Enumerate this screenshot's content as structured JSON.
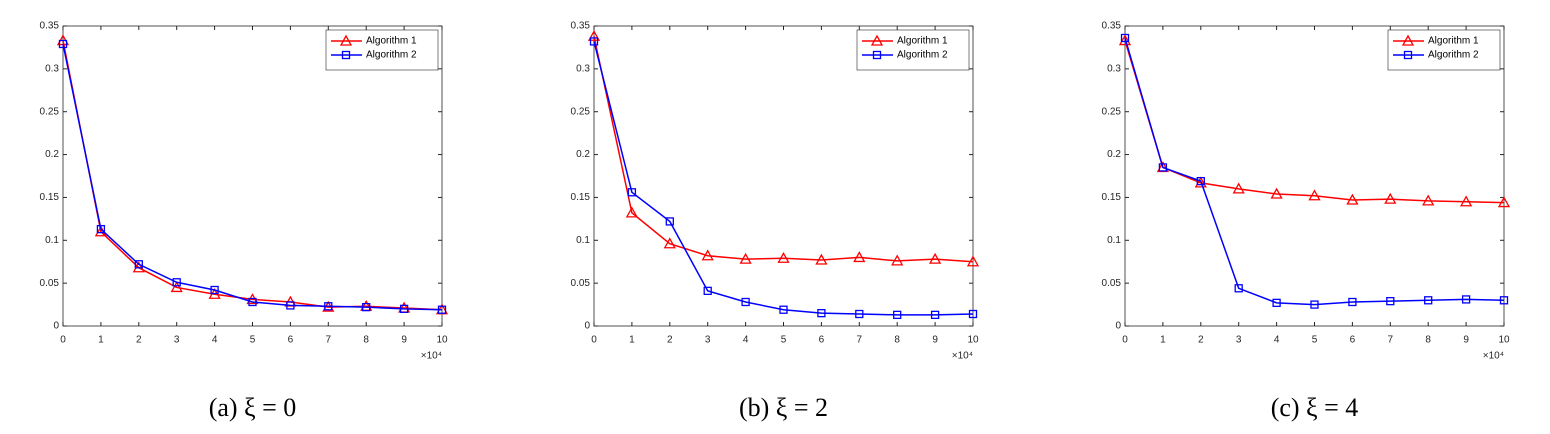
{
  "chart_data": [
    {
      "type": "line",
      "caption": "(a) ξ = 0",
      "x": [
        0,
        1,
        2,
        3,
        4,
        5,
        6,
        7,
        8,
        9,
        10
      ],
      "xlim": [
        0,
        10
      ],
      "xticks": [
        0,
        1,
        2,
        3,
        4,
        5,
        6,
        7,
        8,
        9,
        10
      ],
      "x_multiplier_label": "×10⁴",
      "ylim": [
        0,
        0.35
      ],
      "yticks": [
        0,
        0.05,
        0.1,
        0.15,
        0.2,
        0.25,
        0.3,
        0.35
      ],
      "grid": false,
      "legend": "upper right",
      "series": [
        {
          "name": "Algorithm 1",
          "color": "#ff0000",
          "marker": "triangle",
          "values": [
            0.333,
            0.11,
            0.068,
            0.045,
            0.037,
            0.031,
            0.028,
            0.022,
            0.023,
            0.021,
            0.019
          ]
        },
        {
          "name": "Algorithm 2",
          "color": "#0000ff",
          "marker": "square",
          "values": [
            0.329,
            0.113,
            0.072,
            0.051,
            0.042,
            0.028,
            0.024,
            0.023,
            0.022,
            0.02,
            0.019
          ]
        }
      ]
    },
    {
      "type": "line",
      "caption": "(b) ξ = 2",
      "x": [
        0,
        1,
        2,
        3,
        4,
        5,
        6,
        7,
        8,
        9,
        10
      ],
      "xlim": [
        0,
        10
      ],
      "xticks": [
        0,
        1,
        2,
        3,
        4,
        5,
        6,
        7,
        8,
        9,
        10
      ],
      "x_multiplier_label": "×10⁴",
      "ylim": [
        0,
        0.35
      ],
      "yticks": [
        0,
        0.05,
        0.1,
        0.15,
        0.2,
        0.25,
        0.3,
        0.35
      ],
      "grid": false,
      "legend": "upper right",
      "series": [
        {
          "name": "Algorithm 1",
          "color": "#ff0000",
          "marker": "triangle",
          "values": [
            0.338,
            0.132,
            0.096,
            0.082,
            0.078,
            0.079,
            0.077,
            0.08,
            0.076,
            0.078,
            0.075
          ]
        },
        {
          "name": "Algorithm 2",
          "color": "#0000ff",
          "marker": "square",
          "values": [
            0.332,
            0.156,
            0.122,
            0.041,
            0.028,
            0.019,
            0.015,
            0.014,
            0.013,
            0.013,
            0.014
          ]
        }
      ]
    },
    {
      "type": "line",
      "caption": "(c) ξ = 4",
      "x": [
        0,
        1,
        2,
        3,
        4,
        5,
        6,
        7,
        8,
        9,
        10
      ],
      "xlim": [
        0,
        10
      ],
      "xticks": [
        0,
        1,
        2,
        3,
        4,
        5,
        6,
        7,
        8,
        9,
        10
      ],
      "x_multiplier_label": "×10⁴",
      "ylim": [
        0,
        0.35
      ],
      "yticks": [
        0,
        0.05,
        0.1,
        0.15,
        0.2,
        0.25,
        0.3,
        0.35
      ],
      "grid": false,
      "legend": "upper right",
      "series": [
        {
          "name": "Algorithm 1",
          "color": "#ff0000",
          "marker": "triangle",
          "values": [
            0.333,
            0.185,
            0.167,
            0.16,
            0.154,
            0.152,
            0.147,
            0.148,
            0.146,
            0.145,
            0.144
          ]
        },
        {
          "name": "Algorithm 2",
          "color": "#0000ff",
          "marker": "square",
          "values": [
            0.336,
            0.185,
            0.169,
            0.044,
            0.027,
            0.025,
            0.028,
            0.029,
            0.03,
            0.031,
            0.03
          ]
        }
      ]
    }
  ]
}
